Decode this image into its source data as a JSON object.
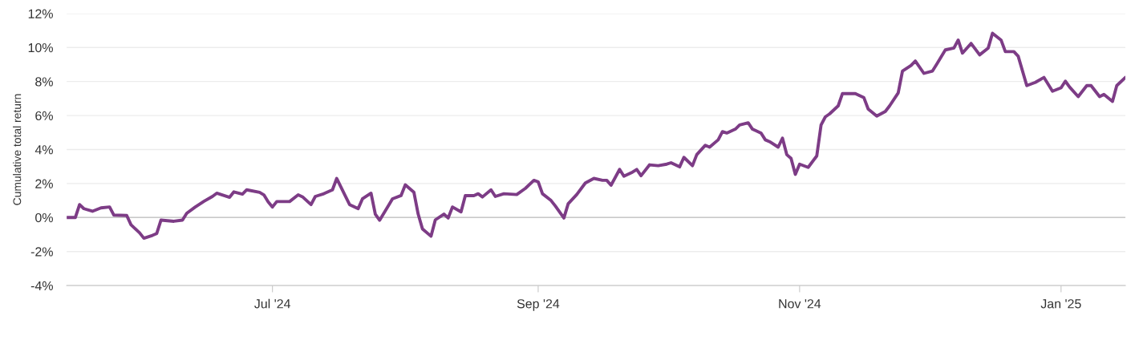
{
  "chart_data": {
    "type": "line",
    "ylabel": "Cumulative total return",
    "x": [
      "2024-05-14",
      "2024-05-16",
      "2024-05-17",
      "2024-05-18",
      "2024-05-20",
      "2024-05-22",
      "2024-05-24",
      "2024-05-25",
      "2024-05-28",
      "2024-05-29",
      "2024-05-31",
      "2024-06-01",
      "2024-06-03",
      "2024-06-04",
      "2024-06-05",
      "2024-06-08",
      "2024-06-10",
      "2024-06-11",
      "2024-06-13",
      "2024-06-15",
      "2024-06-17",
      "2024-06-18",
      "2024-06-21",
      "2024-06-22",
      "2024-06-24",
      "2024-06-25",
      "2024-06-28",
      "2024-06-29",
      "2024-06-30",
      "2024-07-01",
      "2024-07-02",
      "2024-07-05",
      "2024-07-07",
      "2024-07-08",
      "2024-07-10",
      "2024-07-11",
      "2024-07-13",
      "2024-07-15",
      "2024-07-16",
      "2024-07-18",
      "2024-07-19",
      "2024-07-21",
      "2024-07-22",
      "2024-07-24",
      "2024-07-25",
      "2024-07-26",
      "2024-07-28",
      "2024-07-29",
      "2024-07-31",
      "2024-08-01",
      "2024-08-03",
      "2024-08-04",
      "2024-08-05",
      "2024-08-07",
      "2024-08-08",
      "2024-08-10",
      "2024-08-11",
      "2024-08-12",
      "2024-08-14",
      "2024-08-15",
      "2024-08-17",
      "2024-08-18",
      "2024-08-19",
      "2024-08-21",
      "2024-08-22",
      "2024-08-24",
      "2024-08-27",
      "2024-08-29",
      "2024-08-31",
      "2024-09-01",
      "2024-09-02",
      "2024-09-04",
      "2024-09-05",
      "2024-09-07",
      "2024-09-08",
      "2024-09-10",
      "2024-09-12",
      "2024-09-14",
      "2024-09-16",
      "2024-09-17",
      "2024-09-18",
      "2024-09-20",
      "2024-09-21",
      "2024-09-23",
      "2024-09-24",
      "2024-09-25",
      "2024-09-27",
      "2024-09-29",
      "2024-10-01",
      "2024-10-02",
      "2024-10-04",
      "2024-10-05",
      "2024-10-07",
      "2024-10-08",
      "2024-10-10",
      "2024-10-11",
      "2024-10-13",
      "2024-10-14",
      "2024-10-15",
      "2024-10-17",
      "2024-10-18",
      "2024-10-20",
      "2024-10-21",
      "2024-10-23",
      "2024-10-24",
      "2024-10-25",
      "2024-10-27",
      "2024-10-28",
      "2024-10-29",
      "2024-10-30",
      "2024-10-31",
      "2024-11-01",
      "2024-11-03",
      "2024-11-05",
      "2024-11-06",
      "2024-11-07",
      "2024-11-08",
      "2024-11-10",
      "2024-11-11",
      "2024-11-14",
      "2024-11-16",
      "2024-11-17",
      "2024-11-19",
      "2024-11-21",
      "2024-11-22",
      "2024-11-24",
      "2024-11-25",
      "2024-11-27",
      "2024-11-28",
      "2024-11-30",
      "2024-12-02",
      "2024-12-03",
      "2024-12-05",
      "2024-12-07",
      "2024-12-08",
      "2024-12-09",
      "2024-12-11",
      "2024-12-13",
      "2024-12-15",
      "2024-12-16",
      "2024-12-18",
      "2024-12-19",
      "2024-12-21",
      "2024-12-22",
      "2024-12-24",
      "2024-12-26",
      "2024-12-28",
      "2024-12-30",
      "2025-01-01",
      "2025-01-02",
      "2025-01-03",
      "2025-01-05",
      "2025-01-07",
      "2025-01-08",
      "2025-01-10",
      "2025-01-11",
      "2025-01-13",
      "2025-01-14",
      "2025-01-16"
    ],
    "series": [
      {
        "color": "#7d3c86",
        "values": [
          0.0,
          0.0,
          0.76,
          0.52,
          0.37,
          0.57,
          0.62,
          0.14,
          0.12,
          -0.43,
          -0.9,
          -1.22,
          -1.05,
          -0.94,
          -0.15,
          -0.22,
          -0.15,
          0.25,
          0.62,
          0.95,
          1.24,
          1.43,
          1.19,
          1.51,
          1.38,
          1.63,
          1.48,
          1.33,
          0.92,
          0.62,
          0.94,
          0.94,
          1.33,
          1.22,
          0.76,
          1.24,
          1.4,
          1.63,
          2.3,
          1.27,
          0.76,
          0.52,
          1.1,
          1.43,
          0.2,
          -0.16,
          0.67,
          1.1,
          1.29,
          1.92,
          1.49,
          0.2,
          -0.67,
          -1.1,
          -0.14,
          0.2,
          -0.03,
          0.62,
          0.33,
          1.29,
          1.29,
          1.4,
          1.21,
          1.63,
          1.24,
          1.4,
          1.35,
          1.71,
          2.19,
          2.1,
          1.4,
          1.0,
          0.68,
          -0.03,
          0.81,
          1.35,
          2.03,
          2.3,
          2.19,
          2.19,
          1.9,
          2.83,
          2.43,
          2.67,
          2.83,
          2.46,
          3.1,
          3.05,
          3.14,
          3.22,
          2.98,
          3.54,
          3.05,
          3.7,
          4.25,
          4.14,
          4.57,
          5.05,
          4.97,
          5.2,
          5.44,
          5.57,
          5.2,
          4.97,
          4.57,
          4.46,
          4.14,
          4.67,
          3.7,
          3.48,
          2.54,
          3.14,
          2.95,
          3.62,
          5.44,
          5.92,
          6.1,
          6.57,
          7.29,
          7.29,
          7.05,
          6.38,
          5.97,
          6.24,
          6.57,
          7.33,
          8.62,
          8.95,
          9.21,
          8.48,
          8.62,
          9.02,
          9.86,
          9.97,
          10.44,
          9.67,
          10.24,
          9.57,
          9.97,
          10.84,
          10.44,
          9.76,
          9.76,
          9.49,
          7.76,
          7.95,
          8.24,
          7.43,
          7.63,
          8.02,
          7.67,
          7.11,
          7.76,
          7.76,
          7.11,
          7.24,
          6.83,
          7.76,
          8.24
        ]
      }
    ],
    "xlim": [
      "2024-05-14",
      "2025-01-16"
    ],
    "xticks": [
      {
        "value": "2024-07-01",
        "label": "Jul '24"
      },
      {
        "value": "2024-09-01",
        "label": "Sep '24"
      },
      {
        "value": "2024-11-01",
        "label": "Nov '24"
      },
      {
        "value": "2025-01-01",
        "label": "Jan '25"
      }
    ],
    "ylim": [
      -4,
      12
    ],
    "yticks": [
      {
        "value": -4,
        "label": "-4%"
      },
      {
        "value": -2,
        "label": "-2%"
      },
      {
        "value": 0,
        "label": "0%"
      },
      {
        "value": 2,
        "label": "2%"
      },
      {
        "value": 4,
        "label": "4%"
      },
      {
        "value": 6,
        "label": "6%"
      },
      {
        "value": 8,
        "label": "8%"
      },
      {
        "value": 10,
        "label": "10%"
      },
      {
        "value": 12,
        "label": "12%"
      }
    ],
    "grid": "y",
    "marker": "none",
    "line_style": "solid"
  }
}
